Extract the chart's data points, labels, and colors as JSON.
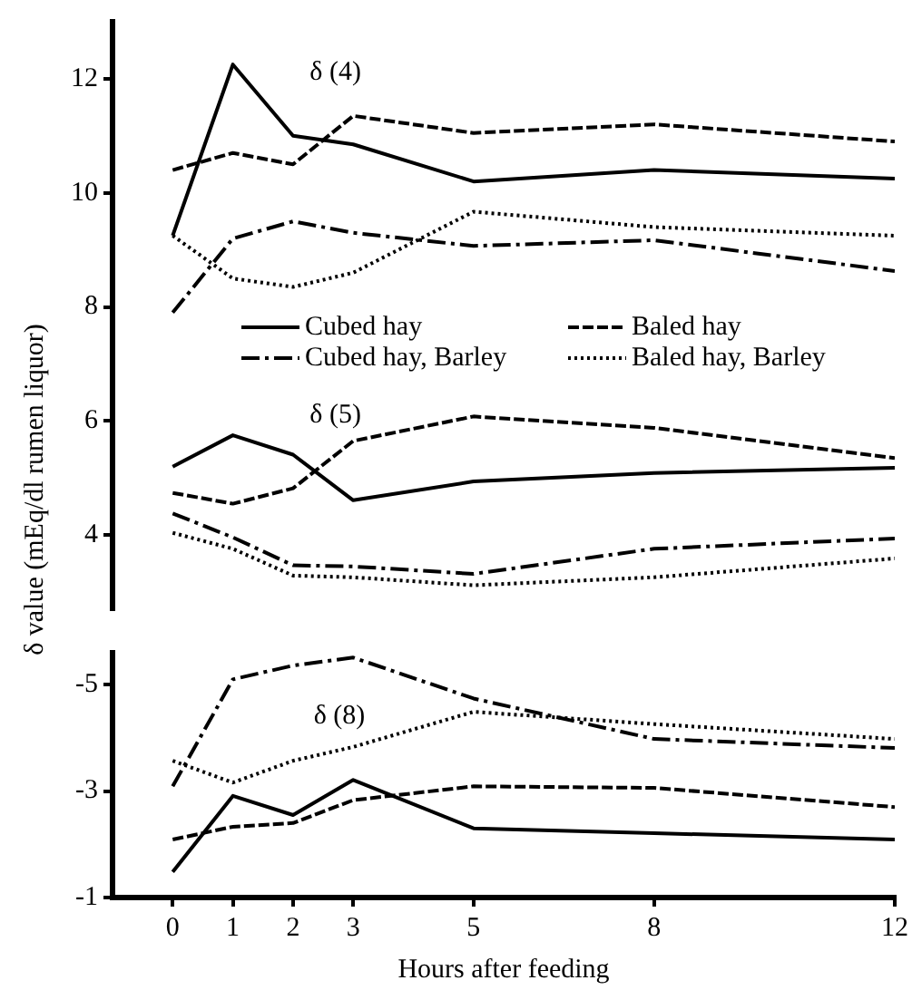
{
  "chart_data": [
    {
      "type": "line",
      "ylabel": "δ value (mEq/dl rumen liquor)",
      "x": [
        0,
        1,
        2,
        3,
        5,
        8,
        12
      ],
      "xlim": [
        -1,
        12
      ],
      "xticks": [
        0,
        1,
        2,
        3,
        5,
        8,
        12
      ],
      "ylim": [
        2.7,
        13
      ],
      "yticks": [
        4,
        6,
        8,
        10,
        12
      ],
      "tick_labels": "y",
      "grid": false,
      "legend": "right",
      "marker": "none",
      "annotations": [
        "δ (4)",
        "δ (5)"
      ],
      "series": [
        {
          "name": "Cubed hay",
          "color": "#000000",
          "line_style": "solid",
          "values": [
            9.25,
            12.25,
            11.0,
            10.85,
            10.2,
            10.4,
            10.25
          ]
        },
        {
          "name": "Baled hay",
          "color": "#000000",
          "line_style": "dashed",
          "values": [
            10.4,
            10.7,
            10.5,
            11.35,
            11.05,
            11.2,
            10.9
          ]
        },
        {
          "name": "Cubed hay, Barley",
          "color": "#000000",
          "line_style": "dashdot",
          "values": [
            7.9,
            9.2,
            9.5,
            9.3,
            9.07,
            9.17,
            8.63
          ]
        },
        {
          "name": "Baled hay, Barley",
          "color": "#000000",
          "line_style": "dotted",
          "values": [
            9.25,
            8.5,
            8.35,
            8.6,
            9.67,
            9.4,
            9.25
          ]
        },
        {
          "color": "#000000",
          "line_style": "solid",
          "values": [
            5.2,
            5.75,
            5.41,
            4.61,
            4.94,
            5.09,
            5.18
          ]
        },
        {
          "color": "#000000",
          "line_style": "dashed",
          "values": [
            4.74,
            4.55,
            4.82,
            5.65,
            6.08,
            5.88,
            5.35
          ]
        },
        {
          "color": "#000000",
          "line_style": "dashdot",
          "values": [
            4.38,
            3.96,
            3.47,
            3.45,
            3.32,
            3.76,
            3.94
          ]
        },
        {
          "color": "#000000",
          "line_style": "dotted",
          "values": [
            4.04,
            3.76,
            3.29,
            3.26,
            3.12,
            3.26,
            3.59
          ]
        }
      ]
    },
    {
      "type": "line",
      "xlabel": "Hours after feeding",
      "x": [
        0,
        1,
        2,
        3,
        5,
        8,
        12
      ],
      "xlim": [
        -1,
        12
      ],
      "xticks": [
        0,
        1,
        2,
        3,
        5,
        8,
        12
      ],
      "ylim": [
        -1,
        -5.6
      ],
      "yticks": [
        -5,
        -3,
        -1
      ],
      "grid": false,
      "marker": "none",
      "annotations": [
        "δ (8)"
      ],
      "series": [
        {
          "color": "#000000",
          "line_style": "solid",
          "values": [
            -1.48,
            -2.91,
            -2.55,
            -3.21,
            -2.3,
            -2.21,
            -2.09
          ]
        },
        {
          "color": "#000000",
          "line_style": "dashed",
          "values": [
            -2.09,
            -2.33,
            -2.4,
            -2.83,
            -3.09,
            -3.06,
            -2.7
          ]
        },
        {
          "color": "#000000",
          "line_style": "dashdot",
          "values": [
            -3.09,
            -5.1,
            -5.36,
            -5.51,
            -4.74,
            -3.98,
            -3.81
          ]
        },
        {
          "color": "#000000",
          "line_style": "dotted",
          "values": [
            -3.57,
            -3.16,
            -3.57,
            -3.83,
            -4.49,
            -4.26,
            -3.98
          ]
        }
      ]
    }
  ]
}
